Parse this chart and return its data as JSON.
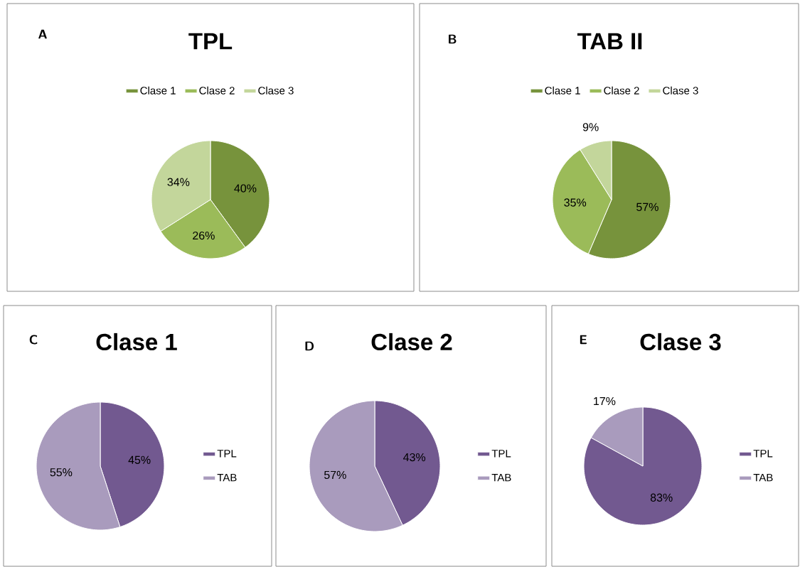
{
  "chart_data": [
    {
      "type": "pie",
      "title": "TPL",
      "annotations": [
        "A"
      ],
      "categories": [
        "Clase 1",
        "Clase 2",
        "Clase 3"
      ],
      "values": [
        40,
        26,
        34
      ],
      "colors": [
        "#77933c",
        "#9bbb59",
        "#c3d69b"
      ],
      "value_labels": [
        "40%",
        "26%",
        "34%"
      ],
      "legend": "top"
    },
    {
      "type": "pie",
      "title": "TAB II",
      "annotations": [
        "B"
      ],
      "categories": [
        "Clase 1",
        "Clase 2",
        "Clase 3"
      ],
      "values": [
        57,
        35,
        9
      ],
      "colors": [
        "#77933c",
        "#9bbb59",
        "#c3d69b"
      ],
      "value_labels": [
        "57%",
        "35%",
        "9%"
      ],
      "legend": "top"
    },
    {
      "type": "pie",
      "title": "Clase 1",
      "annotations": [
        "C"
      ],
      "categories": [
        "TPL",
        "TAB"
      ],
      "values": [
        45,
        55
      ],
      "colors": [
        "#725990",
        "#a99bbd"
      ],
      "value_labels": [
        "45%",
        "55%"
      ],
      "legend": "right"
    },
    {
      "type": "pie",
      "title": "Clase 2",
      "annotations": [
        "D"
      ],
      "categories": [
        "TPL",
        "TAB"
      ],
      "values": [
        43,
        57
      ],
      "colors": [
        "#725990",
        "#a99bbd"
      ],
      "value_labels": [
        "43%",
        "57%"
      ],
      "legend": "right"
    },
    {
      "type": "pie",
      "title": "Clase 3",
      "annotations": [
        "E"
      ],
      "categories": [
        "TPL",
        "TAB"
      ],
      "values": [
        83,
        17
      ],
      "colors": [
        "#725990",
        "#a99bbd"
      ],
      "value_labels": [
        "83%",
        "17%"
      ],
      "legend": "right"
    }
  ]
}
